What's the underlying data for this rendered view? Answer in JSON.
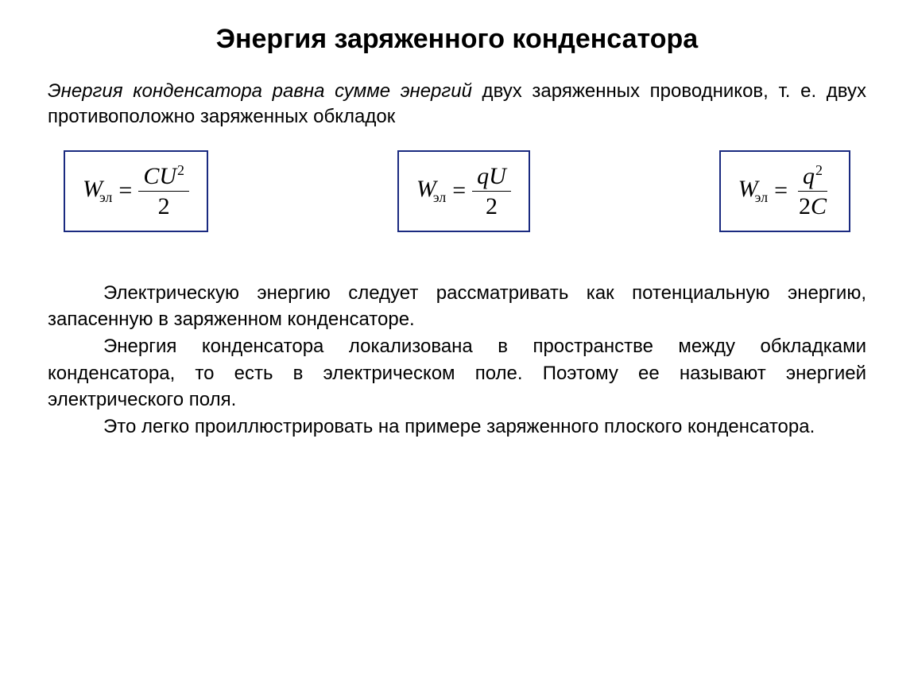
{
  "title": "Энергия заряженного конденсатора",
  "intro": {
    "italic_prefix": "Энергия конденсатора равна сумме энергий",
    "rest": " двух заряженных проводников, т. е. двух противоположно заряженных обкладок"
  },
  "formulas": {
    "lhs_var": "W",
    "subscript": "эл",
    "eq": "=",
    "f1": {
      "num_a": "C",
      "num_b": "U",
      "sup": "2",
      "den": "2"
    },
    "f2": {
      "num_a": "q",
      "num_b": "U",
      "den": "2"
    },
    "f3": {
      "num_a": "q",
      "sup": "2",
      "den_a": "2",
      "den_b": "C"
    }
  },
  "paragraphs": {
    "p1": "Электрическую энергию следует рассматривать как потенциальную энергию, запасенную в заряженном конденсаторе.",
    "p2": "Энергия конденсатора локализована в пространстве между обкладками конденсатора, то есть в электрическом поле. Поэтому ее называют энергией электрического поля.",
    "p3": "Это легко проиллюстрировать на примере заряженного плоского конденсатора."
  },
  "colors": {
    "border": "#1a2a80",
    "text": "#000000",
    "background": "#ffffff"
  }
}
